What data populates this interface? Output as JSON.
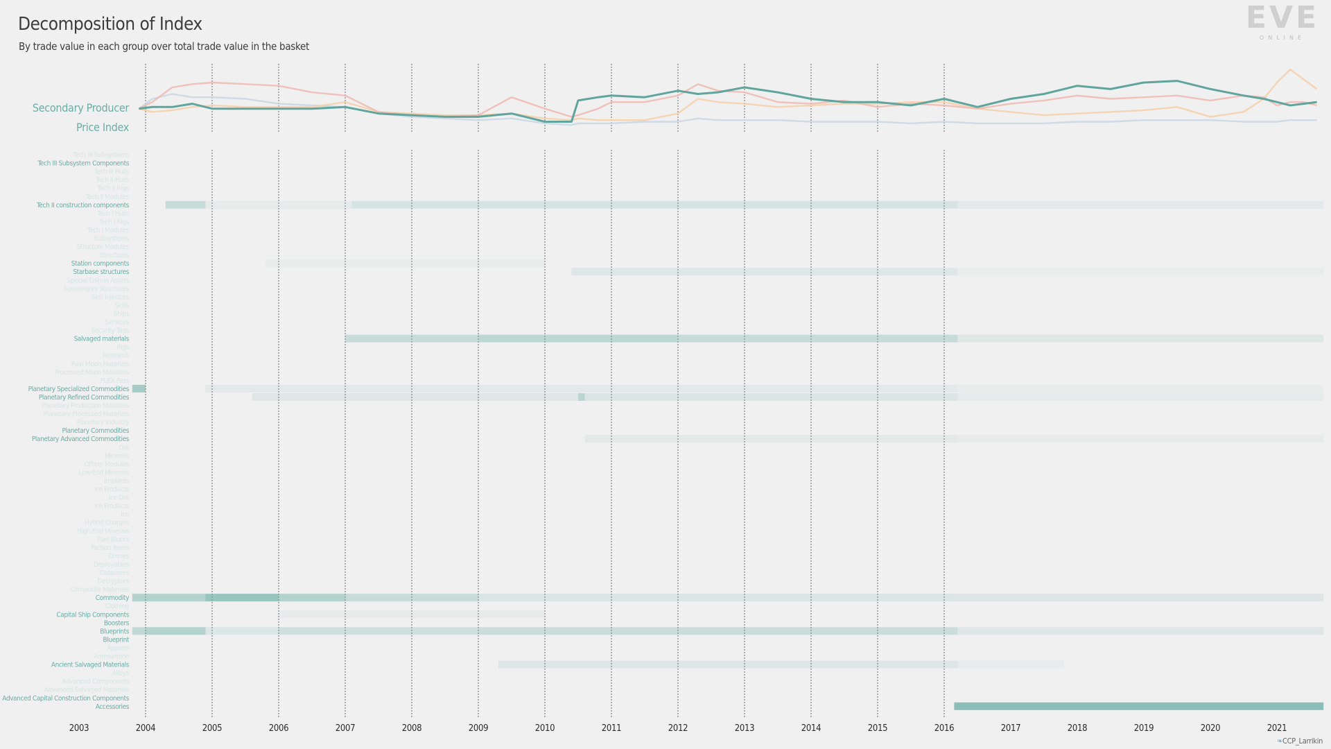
{
  "header": {
    "title": "Decomposition of Index",
    "subtitle": "By trade value in each group over total trade value in the basket"
  },
  "logo": {
    "text": "EVE",
    "subtext": "ONLINE"
  },
  "credit": {
    "icon": "twitter-bird-icon",
    "text": "CCP_Larrikin"
  },
  "colors": {
    "accent": "#6aada5",
    "faint_label": "#d6e6e3",
    "grid": "#555555",
    "series_salmon": "#f0b8b0",
    "series_orange": "#f5cfa8",
    "series_blue": "#c8d6e4",
    "series_teal": "#5fa59d"
  },
  "chart_data": [
    {
      "type": "line",
      "title": "",
      "ylabel": "Secondary Producer Price Index",
      "index_label_lines": [
        "Secondary Producer",
        "Price Index"
      ],
      "xlabel": "",
      "x": [
        2003.9,
        2004.1,
        2004.4,
        2004.7,
        2005.0,
        2005.5,
        2006.0,
        2006.5,
        2007.0,
        2007.5,
        2008.0,
        2008.5,
        2009.0,
        2009.5,
        2010.0,
        2010.4,
        2010.5,
        2010.8,
        2011.0,
        2011.5,
        2012.0,
        2012.3,
        2012.6,
        2013.0,
        2013.5,
        2014.0,
        2014.5,
        2015.0,
        2015.5,
        2016.0,
        2016.5,
        2017.0,
        2017.5,
        2018.0,
        2018.5,
        2019.0,
        2019.5,
        2020.0,
        2020.5,
        2020.8,
        2021.0,
        2021.2,
        2021.4,
        2021.6
      ],
      "series": [
        {
          "name": "",
          "color": "#5fa59d",
          "values": [
            100,
            101,
            101,
            103,
            100,
            100,
            100,
            100,
            101,
            97,
            96,
            95,
            95,
            97,
            92,
            92,
            105,
            107,
            108,
            107,
            111,
            109,
            110,
            113,
            110,
            106,
            104,
            104,
            102,
            106,
            101,
            106,
            109,
            114,
            112,
            116,
            117,
            112,
            108,
            106,
            104,
            102,
            103,
            104
          ]
        },
        {
          "name": "",
          "color": "#f0b8b0",
          "values": [
            100,
            104,
            113,
            115,
            116,
            115,
            114,
            110,
            108,
            98,
            96,
            95,
            96,
            107,
            100,
            95,
            96,
            100,
            104,
            104,
            108,
            115,
            111,
            110,
            104,
            103,
            105,
            101,
            103,
            102,
            100,
            103,
            105,
            108,
            106,
            107,
            108,
            105,
            108,
            107,
            102,
            104,
            104,
            102
          ]
        },
        {
          "name": "",
          "color": "#f5cfa8",
          "values": [
            100,
            98,
            99,
            101,
            102,
            101,
            101,
            101,
            104,
            98,
            97,
            96,
            96,
            97,
            94,
            93,
            94,
            93,
            93,
            93,
            97,
            106,
            104,
            103,
            101,
            102,
            103,
            103,
            104,
            104,
            100,
            98,
            96,
            97,
            98,
            99,
            101,
            95,
            98,
            106,
            116,
            124,
            118,
            112
          ]
        },
        {
          "name": "",
          "color": "#c8d6e4",
          "values": [
            100,
            106,
            109,
            107,
            107,
            106,
            103,
            102,
            101,
            97,
            95,
            94,
            93,
            94,
            91,
            90,
            91,
            91,
            91,
            92,
            92,
            94,
            93,
            93,
            93,
            92,
            92,
            92,
            91,
            92,
            91,
            91,
            91,
            92,
            92,
            93,
            93,
            93,
            92,
            92,
            92,
            93,
            93,
            93
          ]
        }
      ]
    },
    {
      "type": "heatmap",
      "title": "",
      "x_ticks": [
        "2003",
        "2004",
        "2005",
        "2006",
        "2007",
        "2008",
        "2009",
        "2010",
        "2011",
        "2012",
        "2013",
        "2014",
        "2015",
        "2016",
        "2017",
        "2018",
        "2019",
        "2020",
        "2021"
      ],
      "rows": [
        {
          "label": "Tech III Subsystems",
          "highlight": false,
          "cells": []
        },
        {
          "label": "Tech III Subsystem Components",
          "highlight": true,
          "cells": []
        },
        {
          "label": "Tech III Hulls",
          "highlight": false,
          "cells": []
        },
        {
          "label": "Tech II Hulls",
          "highlight": false,
          "cells": []
        },
        {
          "label": "Tech II Rigs",
          "highlight": false,
          "cells": []
        },
        {
          "label": "Tech II Modules",
          "highlight": false,
          "cells": []
        },
        {
          "label": "Tech II construction components",
          "highlight": true,
          "cells": [
            [
              2004.3,
              2004.9,
              0.3
            ],
            [
              2004.9,
              2007.1,
              0.08
            ],
            [
              2007.1,
              2016.2,
              0.18
            ],
            [
              2016.2,
              2021.7,
              0.1
            ]
          ]
        },
        {
          "label": "Tech I Hulls",
          "highlight": false,
          "cells": []
        },
        {
          "label": "Tech I Rigs",
          "highlight": false,
          "cells": []
        },
        {
          "label": "Tech I Modules",
          "highlight": false,
          "cells": []
        },
        {
          "label": "Subsystems",
          "highlight": false,
          "cells": []
        },
        {
          "label": "Structure Modules",
          "highlight": false,
          "cells": []
        },
        {
          "label": "Structures",
          "highlight": false,
          "cells": []
        },
        {
          "label": "Station components",
          "highlight": true,
          "cells": [
            [
              2005.8,
              2010.0,
              0.05
            ]
          ]
        },
        {
          "label": "Starbase structures",
          "highlight": true,
          "cells": [
            [
              2010.4,
              2016.2,
              0.12
            ],
            [
              2016.2,
              2021.7,
              0.05
            ]
          ]
        },
        {
          "label": "Special Edition Assets",
          "highlight": false,
          "cells": []
        },
        {
          "label": "Sovereignty Structures",
          "highlight": false,
          "cells": []
        },
        {
          "label": "Skill Injectors",
          "highlight": false,
          "cells": []
        },
        {
          "label": "Skills",
          "highlight": false,
          "cells": []
        },
        {
          "label": "Ships",
          "highlight": false,
          "cells": []
        },
        {
          "label": "Services",
          "highlight": false,
          "cells": []
        },
        {
          "label": "Security Tags",
          "highlight": false,
          "cells": []
        },
        {
          "label": "Salvaged materials",
          "highlight": true,
          "cells": [
            [
              2007.0,
              2009.0,
              0.3
            ],
            [
              2009.0,
              2012.0,
              0.38
            ],
            [
              2012.0,
              2016.2,
              0.3
            ],
            [
              2016.2,
              2021.7,
              0.12
            ]
          ]
        },
        {
          "label": "Rigs",
          "highlight": false,
          "cells": []
        },
        {
          "label": "Research",
          "highlight": false,
          "cells": []
        },
        {
          "label": "Raw Moon Materials",
          "highlight": false,
          "cells": []
        },
        {
          "label": "Processed Moon Materials",
          "highlight": false,
          "cells": []
        },
        {
          "label": "PLEX Pass",
          "highlight": false,
          "cells": []
        },
        {
          "label": "Planetary Specialized Commodities",
          "highlight": true,
          "cells": [
            [
              2003.8,
              2004.0,
              0.55
            ],
            [
              2004.9,
              2016.2,
              0.1
            ],
            [
              2016.2,
              2021.7,
              0.05
            ]
          ]
        },
        {
          "label": "Planetary Refined Commodities",
          "highlight": true,
          "cells": [
            [
              2005.6,
              2010.5,
              0.12
            ],
            [
              2010.5,
              2010.6,
              0.4
            ],
            [
              2010.6,
              2016.2,
              0.16
            ],
            [
              2016.2,
              2021.7,
              0.08
            ]
          ]
        },
        {
          "label": "Planetary Production Materials",
          "highlight": false,
          "cells": []
        },
        {
          "label": "Planetary Processed Materials",
          "highlight": false,
          "cells": []
        },
        {
          "label": "Planetary Industry",
          "highlight": false,
          "cells": []
        },
        {
          "label": "Planetary Commodities",
          "highlight": true,
          "cells": []
        },
        {
          "label": "Planetary Advanced Commodities",
          "highlight": true,
          "cells": [
            [
              2010.6,
              2016.2,
              0.1
            ],
            [
              2016.2,
              2021.7,
              0.06
            ]
          ]
        },
        {
          "label": "Ore",
          "highlight": false,
          "cells": []
        },
        {
          "label": "Minerals",
          "highlight": false,
          "cells": []
        },
        {
          "label": "Officer Modules",
          "highlight": false,
          "cells": []
        },
        {
          "label": "Low-End Minerals",
          "highlight": false,
          "cells": []
        },
        {
          "label": "Implants",
          "highlight": false,
          "cells": []
        },
        {
          "label": "Ice Products",
          "highlight": false,
          "cells": []
        },
        {
          "label": "Ice Ore",
          "highlight": false,
          "cells": []
        },
        {
          "label": "Ice Products",
          "highlight": false,
          "cells": []
        },
        {
          "label": "Ice",
          "highlight": false,
          "cells": []
        },
        {
          "label": "Hybrid Charges",
          "highlight": false,
          "cells": []
        },
        {
          "label": "High-End Minerals",
          "highlight": false,
          "cells": []
        },
        {
          "label": "Fuel Blocks",
          "highlight": false,
          "cells": []
        },
        {
          "label": "Faction Items",
          "highlight": false,
          "cells": []
        },
        {
          "label": "Drones",
          "highlight": false,
          "cells": []
        },
        {
          "label": "Deployables",
          "highlight": false,
          "cells": []
        },
        {
          "label": "Datacores",
          "highlight": false,
          "cells": []
        },
        {
          "label": "Decryptors",
          "highlight": false,
          "cells": []
        },
        {
          "label": "Composite Materials",
          "highlight": false,
          "cells": []
        },
        {
          "label": "Commodity",
          "highlight": true,
          "cells": [
            [
              2003.8,
              2004.9,
              0.45
            ],
            [
              2004.9,
              2006.0,
              0.65
            ],
            [
              2006.0,
              2007.0,
              0.45
            ],
            [
              2007.0,
              2009.0,
              0.3
            ],
            [
              2009.0,
              2016.2,
              0.16
            ],
            [
              2016.2,
              2021.7,
              0.14
            ]
          ]
        },
        {
          "label": "Clothing",
          "highlight": false,
          "cells": []
        },
        {
          "label": "Capital Ship Components",
          "highlight": true,
          "cells": [
            [
              2006.0,
              2010.0,
              0.06
            ]
          ]
        },
        {
          "label": "Boosters",
          "highlight": true,
          "cells": []
        },
        {
          "label": "Blueprints",
          "highlight": true,
          "cells": [
            [
              2003.8,
              2004.0,
              0.35
            ],
            [
              2004.0,
              2004.9,
              0.45
            ],
            [
              2004.9,
              2006.0,
              0.15
            ],
            [
              2006.0,
              2009.0,
              0.25
            ],
            [
              2009.0,
              2016.2,
              0.28
            ],
            [
              2016.2,
              2021.7,
              0.13
            ]
          ]
        },
        {
          "label": "Blueprint",
          "highlight": true,
          "cells": []
        },
        {
          "label": "Apparel",
          "highlight": false,
          "cells": []
        },
        {
          "label": "Ammunition",
          "highlight": false,
          "cells": []
        },
        {
          "label": "Ancient Salvaged Materials",
          "highlight": true,
          "cells": [
            [
              2009.3,
              2016.2,
              0.14
            ],
            [
              2016.2,
              2017.8,
              0.06
            ]
          ]
        },
        {
          "label": "Alloys",
          "highlight": false,
          "cells": []
        },
        {
          "label": "Advanced Components",
          "highlight": false,
          "cells": []
        },
        {
          "label": "Advanced Salvaged Materials",
          "highlight": false,
          "cells": []
        },
        {
          "label": "Advanced Capital Construction Components",
          "highlight": true,
          "cells": []
        },
        {
          "label": "Accessories",
          "highlight": true,
          "cells": [
            [
              2016.15,
              2021.7,
              0.75
            ]
          ]
        }
      ]
    }
  ]
}
